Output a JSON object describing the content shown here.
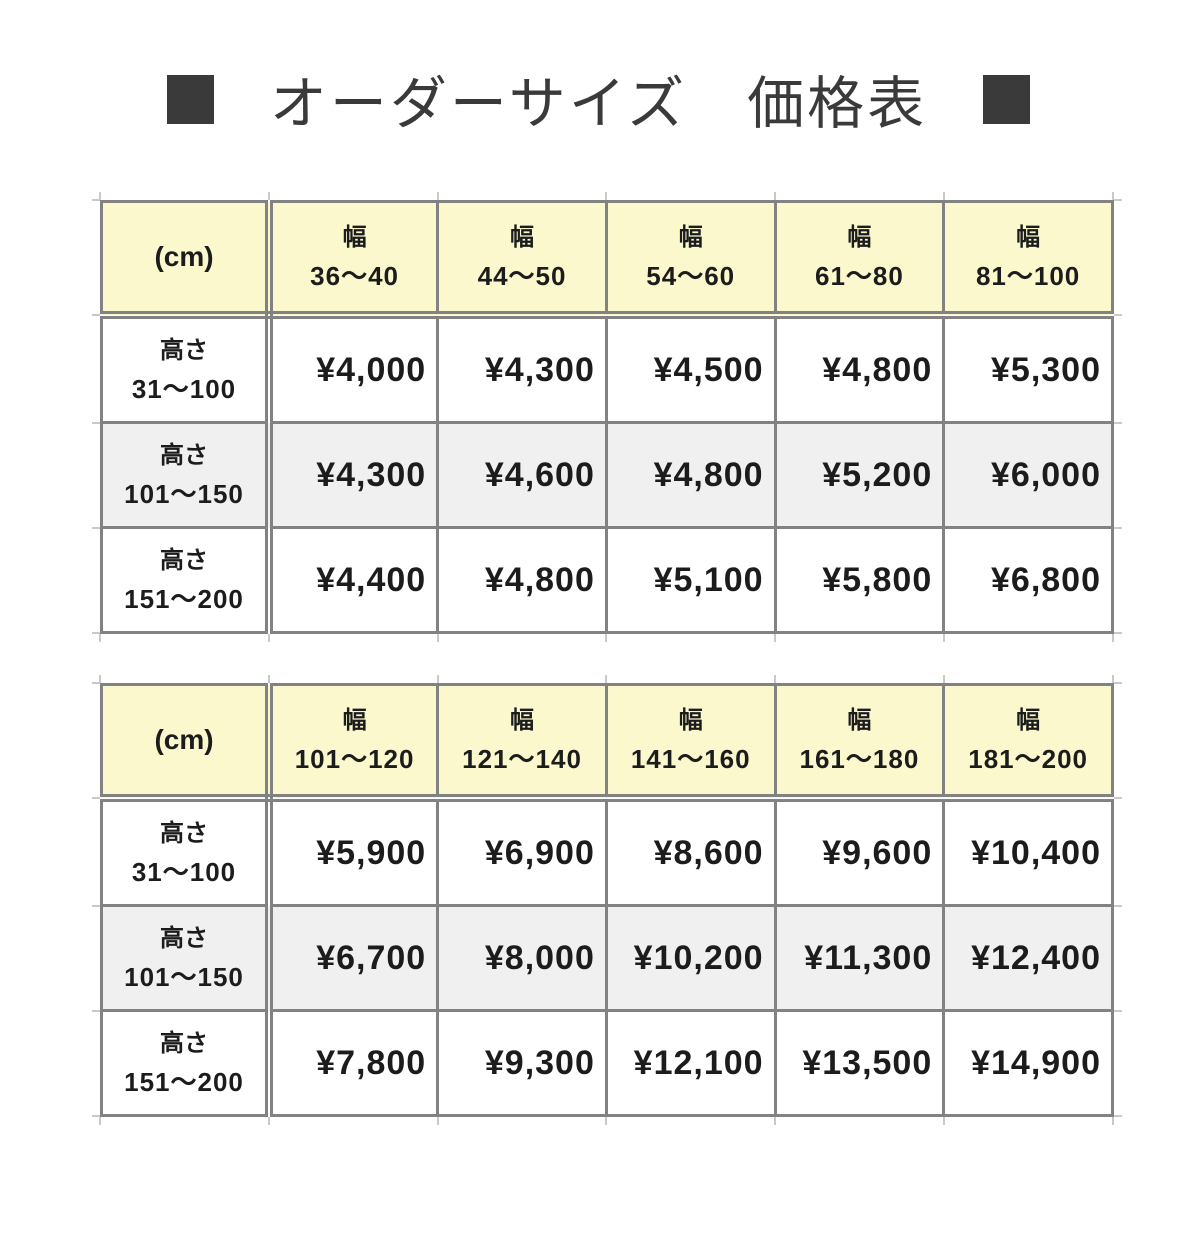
{
  "title": {
    "text": "オーダーサイズ　価格表"
  },
  "colors": {
    "title_color": "#3A3A3A",
    "header_bg": "#FBF8CD",
    "alt_row_bg": "#F0F0F0",
    "row_bg": "#FFFFFF",
    "table_border": "#828282",
    "gridline_stub": "#C9C9C9",
    "text": "#1C1C1C"
  },
  "tables": [
    {
      "corner_label": "(cm)",
      "col_prefix": "幅",
      "row_prefix": "高さ",
      "columns": [
        "36～40",
        "44～50",
        "54～60",
        "61～80",
        "81～100"
      ],
      "rows": [
        {
          "range": "31～100",
          "prices": [
            "¥4,000",
            "¥4,300",
            "¥4,500",
            "¥4,800",
            "¥5,300"
          ]
        },
        {
          "range": "101～150",
          "prices": [
            "¥4,300",
            "¥4,600",
            "¥4,800",
            "¥5,200",
            "¥6,000"
          ]
        },
        {
          "range": "151～200",
          "prices": [
            "¥4,400",
            "¥4,800",
            "¥5,100",
            "¥5,800",
            "¥6,800"
          ]
        }
      ]
    },
    {
      "corner_label": "(cm)",
      "col_prefix": "幅",
      "row_prefix": "高さ",
      "columns": [
        "101～120",
        "121～140",
        "141～160",
        "161～180",
        "181～200"
      ],
      "rows": [
        {
          "range": "31～100",
          "prices": [
            "¥5,900",
            "¥6,900",
            "¥8,600",
            "¥9,600",
            "¥10,400"
          ]
        },
        {
          "range": "101～150",
          "prices": [
            "¥6,700",
            "¥8,000",
            "¥10,200",
            "¥11,300",
            "¥12,400"
          ]
        },
        {
          "range": "151～200",
          "prices": [
            "¥7,800",
            "¥9,300",
            "¥12,100",
            "¥13,500",
            "¥14,900"
          ]
        }
      ]
    }
  ],
  "chart_data": [
    {
      "type": "table",
      "title": "オーダーサイズ　価格表（幅36～100cm）",
      "unit": "cm",
      "columns": [
        "幅 36～40",
        "幅 44～50",
        "幅 54～60",
        "幅 61～80",
        "幅 81～100"
      ],
      "rows": [
        "高さ 31～100",
        "高さ 101～150",
        "高さ 151～200"
      ],
      "values_yen": [
        [
          4000,
          4300,
          4500,
          4800,
          5300
        ],
        [
          4300,
          4600,
          4800,
          5200,
          6000
        ],
        [
          4400,
          4800,
          5100,
          5800,
          6800
        ]
      ]
    },
    {
      "type": "table",
      "title": "オーダーサイズ　価格表（幅101～200cm）",
      "unit": "cm",
      "columns": [
        "幅 101～120",
        "幅 121～140",
        "幅 141～160",
        "幅 161～180",
        "幅 181～200"
      ],
      "rows": [
        "高さ 31～100",
        "高さ 101～150",
        "高さ 151～200"
      ],
      "values_yen": [
        [
          5900,
          6900,
          8600,
          9600,
          10400
        ],
        [
          6700,
          8000,
          10200,
          11300,
          12400
        ],
        [
          7800,
          9300,
          12100,
          13500,
          14900
        ]
      ]
    }
  ]
}
